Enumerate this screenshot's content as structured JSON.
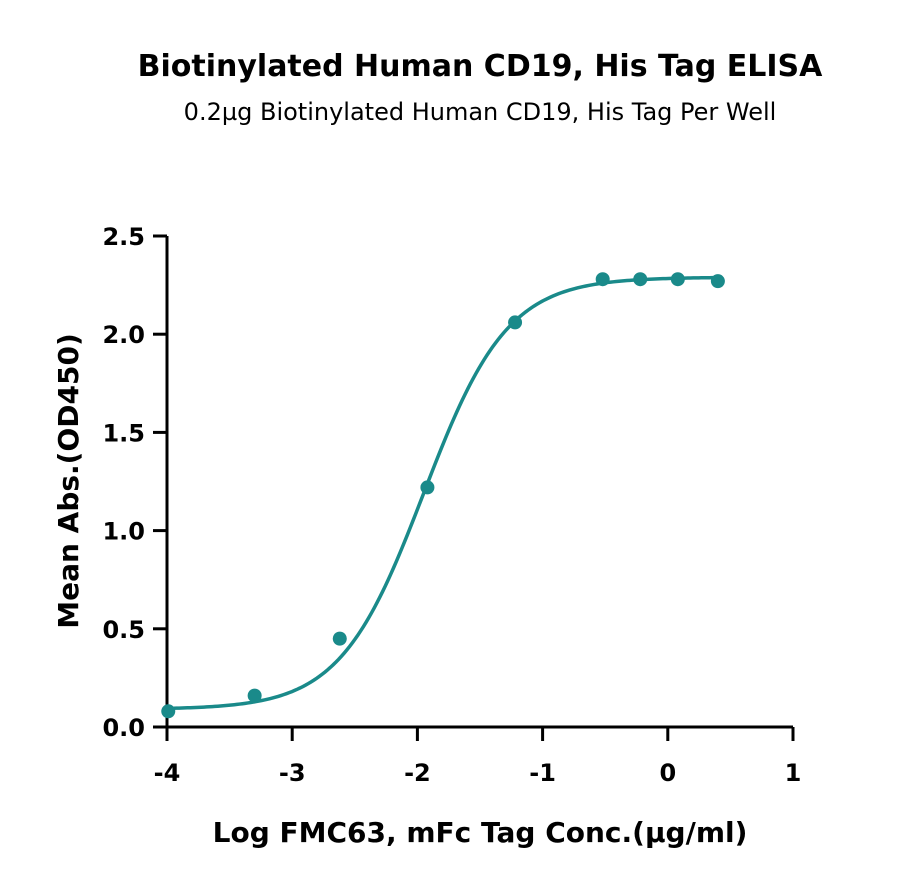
{
  "chart_data": {
    "type": "scatter",
    "title": "Biotinylated Human CD19, His Tag ELISA",
    "subtitle": "0.2µg Biotinylated Human CD19, His Tag Per Well",
    "xlabel": "Log FMC63, mFc Tag Conc.(µg/ml)",
    "ylabel": "Mean Abs.(OD450)",
    "xlim": [
      -4,
      1
    ],
    "ylim": [
      0,
      2.5
    ],
    "xticks": [
      -4,
      -3,
      -2,
      -1,
      0,
      1
    ],
    "xtick_labels": [
      "-4",
      "-3",
      "-2",
      "-1",
      "0",
      "1"
    ],
    "yticks": [
      0,
      0.5,
      1.0,
      1.5,
      2.0,
      2.5
    ],
    "ytick_labels": [
      "0.0",
      "0.5",
      "1.0",
      "1.5",
      "2.0",
      "2.5"
    ],
    "grid": false,
    "color": "#1a8a8a",
    "series": [
      {
        "x": [
          -3.99,
          -3.3,
          -2.62,
          -1.92,
          -1.22,
          -0.52,
          -0.22,
          0.08,
          0.4
        ],
        "y": [
          0.08,
          0.16,
          0.45,
          1.22,
          2.06,
          2.28,
          2.28,
          2.28,
          2.27
        ],
        "fit": {
          "model": "4PL",
          "bottom": 0.09,
          "top": 2.29,
          "logEC50": -1.95,
          "hill": 1.3
        }
      }
    ]
  }
}
